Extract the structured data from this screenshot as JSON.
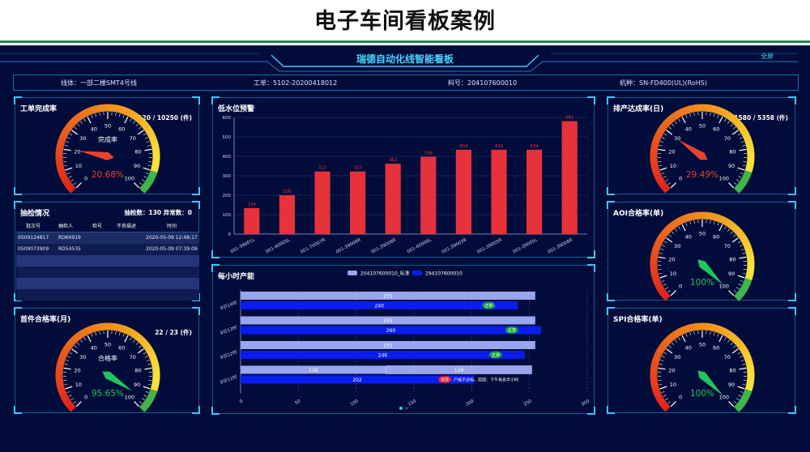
{
  "page_title": "电子车间看板案例",
  "dashboard": {
    "title": "瑞德自动化线智能看板",
    "fullscreen_label": "全屏"
  },
  "info_bar": {
    "line": "线体：一部二楼SMT4号线",
    "work_order": "工单：5102-20200418012",
    "material": "料号：204107600010",
    "machine": "机种：SN-FD400(UL)(RoHS)"
  },
  "gauges": {
    "work_order": {
      "title": "工单完成率",
      "count": "2120 / 10250 (件)",
      "label": "完成率",
      "value_text": "20.68%",
      "value": 20.68,
      "value_color": "#e8432f",
      "needle_color": "#e8432f"
    },
    "first_article": {
      "title": "首件合格率(月)",
      "count": "22 / 23 (件)",
      "label": "合格率",
      "value_text": "95.65%",
      "value": 95.65,
      "value_color": "#22c55e",
      "needle_color": "#22c55e"
    },
    "daily_output": {
      "title": "排产达成率(日)",
      "count": "1580 / 5358 (件)",
      "label": "",
      "value_text": "29.49%",
      "value": 29.49,
      "value_color": "#e8432f",
      "needle_color": "#e8432f"
    },
    "aoi": {
      "title": "AOI合格率(单)",
      "count": "",
      "label": "",
      "value_text": "100%",
      "value": 100,
      "value_color": "#22c55e",
      "needle_color": "#22c55e"
    },
    "spi": {
      "title": "SPI合格率(单)",
      "count": "",
      "label": "",
      "value_text": "100%",
      "value": 100,
      "value_color": "#22c55e",
      "needle_color": "#22c55e"
    },
    "ticks": [
      "0",
      "10",
      "20",
      "30",
      "40",
      "50",
      "60",
      "70",
      "80",
      "90",
      "100"
    ]
  },
  "sampling": {
    "title": "抽检情况",
    "stats": "抽检数：130    异常数：0",
    "columns": [
      "批次号",
      "抽检人",
      "检号",
      "不良描述",
      "时间"
    ],
    "rows": [
      [
        "0509124817",
        "RD66919",
        "",
        "",
        "2020-05-09 12:48:17"
      ],
      [
        "0509073909",
        "RD54535",
        "",
        "",
        "2020-05-09 07:39:09"
      ]
    ]
  },
  "chart_data": [
    {
      "type": "bar",
      "title": "低水位预警",
      "categories": [
        "001-39001L",
        "001-40005L",
        "001-70007R",
        "001-39006R",
        "001-39006R",
        "001-40006L",
        "001-39003R",
        "001-39005R",
        "001-39005L",
        "001-39006R"
      ],
      "values": [
        134,
        200,
        322,
        322,
        362,
        398,
        434,
        434,
        434,
        581
      ],
      "ylim": [
        0,
        600
      ],
      "yticks": [
        "0",
        "100",
        "200",
        "300",
        "400",
        "500",
        "600"
      ],
      "bar_color": "#e5323b"
    },
    {
      "type": "bar",
      "title": "每小时产能",
      "orientation": "horizontal",
      "categories": [
        "8日14时",
        "8日13时",
        "8日12时",
        "8日11时"
      ],
      "series": [
        {
          "name": "204107600010_标准",
          "values": [
            255,
            255,
            255,
            126
          ],
          "color": "#9aa5ef"
        },
        {
          "name": "294107600010",
          "values": [
            240,
            260,
            246,
            202
          ],
          "color": "#0a1df0"
        }
      ],
      "extra_segment": {
        "index": 3,
        "value": 126
      },
      "badges": [
        "正常",
        "正常",
        "正常",
        "异常"
      ],
      "badge_colors": [
        "#14a33a",
        "#14a33a",
        "#14a33a",
        "#e8212d"
      ],
      "note": "产能不达标，原因：下午休息半小时",
      "xlim": [
        0,
        300
      ],
      "xticks": [
        "0",
        "50",
        "100",
        "150",
        "200",
        "250",
        "300"
      ]
    }
  ]
}
